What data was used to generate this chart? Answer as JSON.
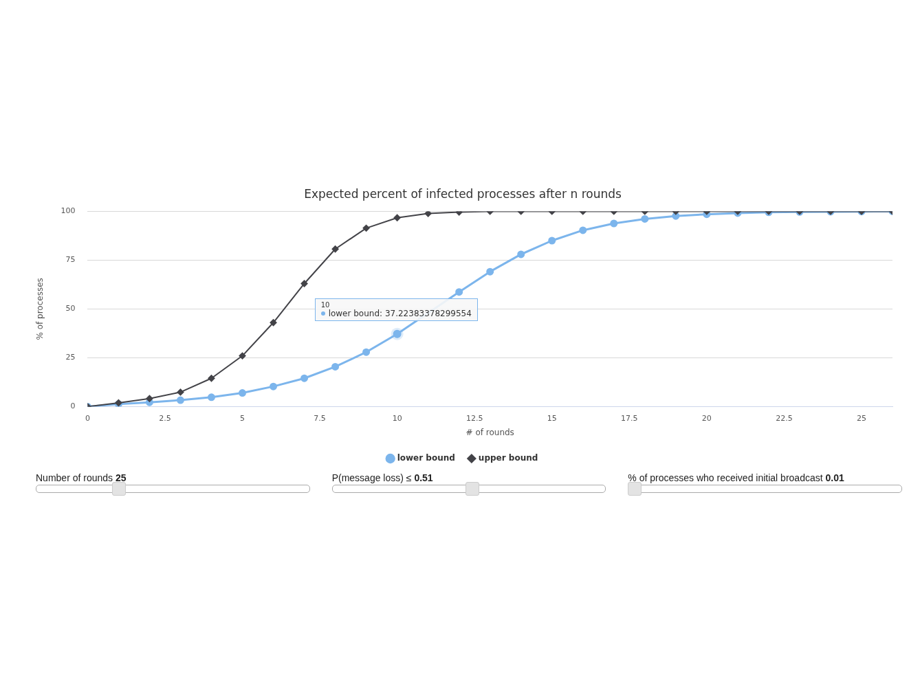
{
  "chart_data": {
    "type": "line",
    "title": "Expected percent of infected processes after n rounds",
    "xlabel": "# of rounds",
    "ylabel": "% of processes",
    "x": [
      0,
      1,
      2,
      3,
      4,
      5,
      6,
      7,
      8,
      9,
      10,
      11,
      12,
      13,
      14,
      15,
      16,
      17,
      18,
      19,
      20,
      21,
      22,
      23,
      24,
      25,
      26
    ],
    "series": [
      {
        "name": "lower bound",
        "color": "#7cb5ec",
        "marker": "circle",
        "values": [
          0,
          1.3,
          2.2,
          3.3,
          4.8,
          7,
          10.3,
          14.5,
          20.4,
          27.9,
          37.22383378299554,
          null,
          58.7,
          69.1,
          78,
          85,
          90.3,
          93.8,
          96.1,
          97.6,
          98.5,
          99.1,
          99.5,
          99.7,
          99.8,
          99.9,
          100
        ]
      },
      {
        "name": "upper bound",
        "color": "#434348",
        "marker": "diamond",
        "values": [
          0,
          1.9,
          4.1,
          7.4,
          14.5,
          26,
          43,
          63,
          80.7,
          91.4,
          96.7,
          98.9,
          99.6,
          100,
          100,
          100,
          100,
          100,
          100,
          100,
          100,
          100,
          100,
          100,
          100,
          100,
          100
        ]
      }
    ],
    "xlim": [
      0,
      26
    ],
    "xticks": [
      0,
      2.5,
      5,
      7.5,
      10,
      12.5,
      15,
      17.5,
      20,
      22.5,
      25
    ],
    "ylim": [
      0,
      100
    ],
    "yticks": [
      0,
      25,
      50,
      75,
      100
    ],
    "grid": "y",
    "legend": "bottom",
    "annotations": [
      {
        "text": "10\nlower bound: 37.22383378299554",
        "x": 10,
        "y": 37.22383378299554
      },
      "Number of rounds 25",
      "P(message loss) ≤ 0.51",
      "% of processes who received initial broadcast 0.01"
    ]
  }
}
